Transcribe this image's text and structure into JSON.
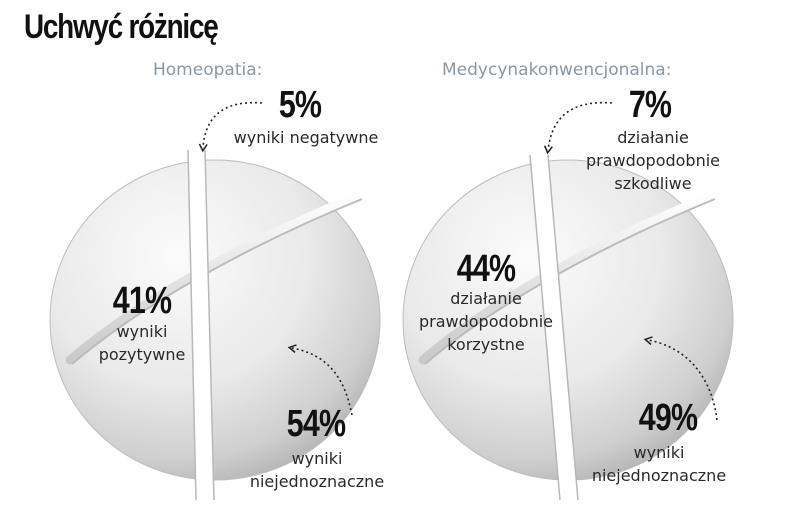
{
  "title": "Uchwyć różnicę",
  "chart_data": [
    {
      "type": "pie",
      "title": "Homeopatia:",
      "slices": [
        {
          "value": 5,
          "label": "5%",
          "text": "wyniki negatywne"
        },
        {
          "value": 41,
          "label": "41%",
          "text": "wyniki\npozytywne"
        },
        {
          "value": 54,
          "label": "54%",
          "text": "wyniki\nniejednoznaczne"
        }
      ]
    },
    {
      "type": "pie",
      "title": "Medycynakonwencjonalna:",
      "slices": [
        {
          "value": 7,
          "label": "7%",
          "text": "działanie\nprawdopodobnie\nszkodliwe"
        },
        {
          "value": 44,
          "label": "44%",
          "text": "działanie\nprawdopodobnie\nkorzystne"
        },
        {
          "value": 49,
          "label": "49%",
          "text": "wyniki\nniejednoznaczne"
        }
      ]
    }
  ]
}
